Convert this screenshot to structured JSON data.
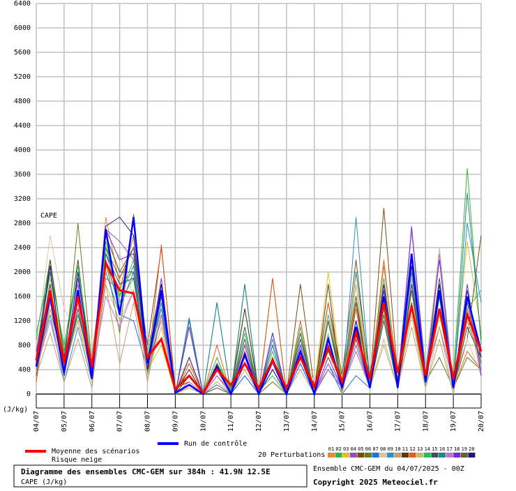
{
  "chart_data": {
    "type": "line",
    "annotation": "CAPE",
    "unit_label": "(J/kg)",
    "ylim": [
      0,
      6400
    ],
    "yticks": [
      0,
      400,
      800,
      1200,
      1600,
      2000,
      2400,
      2800,
      3200,
      3600,
      4000,
      4400,
      4800,
      5200,
      5600,
      6000,
      6400
    ],
    "xlim": [
      0,
      16
    ],
    "xticks": [
      {
        "value": 0,
        "label": "04/07"
      },
      {
        "value": 1,
        "label": "05/07"
      },
      {
        "value": 2,
        "label": "06/07"
      },
      {
        "value": 3,
        "label": "07/07"
      },
      {
        "value": 4,
        "label": "08/07"
      },
      {
        "value": 5,
        "label": "09/07"
      },
      {
        "value": 6,
        "label": "10/07"
      },
      {
        "value": 7,
        "label": "11/07"
      },
      {
        "value": 8,
        "label": "12/07"
      },
      {
        "value": 9,
        "label": "13/07"
      },
      {
        "value": 10,
        "label": "14/07"
      },
      {
        "value": 11,
        "label": "15/07"
      },
      {
        "value": 12,
        "label": "16/07"
      },
      {
        "value": 13,
        "label": "17/07"
      },
      {
        "value": 14,
        "label": "18/07"
      },
      {
        "value": 15,
        "label": "19/07"
      },
      {
        "value": 16,
        "label": "20/07"
      }
    ],
    "grid": true,
    "x": [
      0,
      0.5,
      1,
      1.5,
      2,
      2.5,
      3,
      3.5,
      4,
      4.5,
      5,
      5.5,
      6,
      6.5,
      7,
      7.5,
      8,
      8.5,
      9,
      9.5,
      10,
      10.5,
      11,
      11.5,
      12,
      12.5,
      13,
      13.5,
      14,
      14.5,
      15,
      15.5,
      16
    ],
    "series": [
      {
        "name": "01",
        "color": "#e8883a",
        "values": [
          300,
          1500,
          400,
          1200,
          300,
          2900,
          1800,
          2000,
          500,
          1200,
          50,
          600,
          0,
          300,
          50,
          800,
          0,
          200,
          0,
          1000,
          50,
          400,
          100,
          1800,
          200,
          2100,
          300,
          2300,
          200,
          2400,
          100,
          1200,
          600
        ]
      },
      {
        "name": "02",
        "color": "#40b040",
        "values": [
          900,
          2200,
          700,
          2000,
          400,
          2500,
          1500,
          1900,
          700,
          1800,
          100,
          200,
          0,
          500,
          100,
          1400,
          50,
          300,
          0,
          900,
          100,
          700,
          150,
          1200,
          300,
          1900,
          200,
          2700,
          400,
          1800,
          300,
          3700,
          800
        ]
      },
      {
        "name": "03",
        "color": "#e0c020",
        "values": [
          200,
          1900,
          600,
          1500,
          300,
          2100,
          1600,
          2800,
          400,
          800,
          20,
          100,
          0,
          600,
          50,
          600,
          0,
          400,
          0,
          700,
          100,
          2000,
          200,
          1600,
          300,
          1800,
          100,
          2100,
          200,
          1300,
          200,
          2500,
          1000
        ]
      },
      {
        "name": "04",
        "color": "#9050c0",
        "values": [
          700,
          2100,
          300,
          1800,
          200,
          2700,
          2500,
          2200,
          300,
          1800,
          0,
          1100,
          0,
          300,
          0,
          300,
          0,
          600,
          0,
          500,
          0,
          400,
          100,
          800,
          100,
          1700,
          200,
          2700,
          300,
          1100,
          200,
          1400,
          500
        ]
      },
      {
        "name": "05",
        "color": "#7a4a10",
        "values": [
          400,
          1400,
          500,
          1300,
          600,
          2400,
          1900,
          2400,
          800,
          2400,
          100,
          200,
          0,
          100,
          0,
          700,
          0,
          1900,
          0,
          1800,
          100,
          1500,
          300,
          2200,
          200,
          3050,
          300,
          1800,
          400,
          1600,
          100,
          900,
          2600
        ]
      },
      {
        "name": "06",
        "color": "#6a7a20",
        "values": [
          500,
          1600,
          400,
          2800,
          500,
          2200,
          1000,
          2950,
          300,
          1300,
          50,
          400,
          0,
          300,
          0,
          500,
          0,
          200,
          0,
          600,
          0,
          1200,
          100,
          700,
          100,
          1400,
          100,
          1300,
          200,
          600,
          100,
          600,
          400
        ]
      },
      {
        "name": "07",
        "color": "#2070e0",
        "values": [
          600,
          1800,
          300,
          1600,
          400,
          2000,
          1300,
          1200,
          400,
          1500,
          0,
          1250,
          0,
          150,
          0,
          300,
          0,
          1000,
          0,
          500,
          0,
          500,
          0,
          300,
          100,
          1600,
          100,
          1900,
          100,
          1700,
          100,
          1600,
          600
        ]
      },
      {
        "name": "08",
        "color": "#d8c8a0",
        "values": [
          800,
          2600,
          1400,
          1000,
          600,
          2000,
          2300,
          1600,
          900,
          1200,
          300,
          500,
          100,
          400,
          200,
          500,
          200,
          500,
          100,
          700,
          200,
          600,
          300,
          1100,
          400,
          1500,
          300,
          1900,
          400,
          2400,
          200,
          900,
          300
        ]
      },
      {
        "name": "09",
        "color": "#3090c0",
        "values": [
          400,
          1300,
          200,
          1100,
          200,
          2300,
          1600,
          2100,
          400,
          1700,
          0,
          300,
          0,
          1500,
          0,
          1800,
          0,
          900,
          0,
          1000,
          0,
          500,
          0,
          2900,
          200,
          1700,
          200,
          2000,
          100,
          2300,
          100,
          2800,
          1500
        ]
      },
      {
        "name": "10",
        "color": "#c0a070",
        "values": [
          300,
          1000,
          200,
          900,
          100,
          1800,
          500,
          1500,
          200,
          1300,
          0,
          100,
          0,
          200,
          0,
          400,
          0,
          600,
          0,
          400,
          0,
          1000,
          0,
          1000,
          100,
          800,
          100,
          1100,
          100,
          900,
          0,
          1400,
          300
        ]
      },
      {
        "name": "11",
        "color": "#5a3a1a",
        "values": [
          600,
          2200,
          600,
          2200,
          300,
          2600,
          2000,
          2000,
          500,
          1800,
          20,
          400,
          0,
          500,
          0,
          1400,
          0,
          400,
          0,
          800,
          0,
          1800,
          50,
          1500,
          100,
          1600,
          100,
          1500,
          200,
          1700,
          100,
          1300,
          700
        ]
      },
      {
        "name": "12",
        "color": "#e06020",
        "values": [
          200,
          1700,
          500,
          1500,
          200,
          1900,
          1700,
          2600,
          400,
          2450,
          0,
          500,
          0,
          800,
          0,
          700,
          0,
          1900,
          0,
          1200,
          0,
          1500,
          100,
          1400,
          100,
          2200,
          200,
          1700,
          200,
          1600,
          100,
          700,
          400
        ]
      },
      {
        "name": "13",
        "color": "#c8b870",
        "values": [
          300,
          1400,
          300,
          1700,
          200,
          1800,
          1200,
          1700,
          300,
          1100,
          0,
          200,
          0,
          200,
          0,
          900,
          0,
          400,
          0,
          600,
          0,
          1000,
          0,
          1800,
          100,
          900,
          100,
          1300,
          100,
          1100,
          0,
          1200,
          500
        ]
      },
      {
        "name": "14",
        "color": "#20c060",
        "values": [
          1000,
          2000,
          800,
          2100,
          500,
          2400,
          1600,
          2200,
          600,
          1700,
          100,
          300,
          0,
          600,
          0,
          1000,
          0,
          700,
          0,
          1100,
          0,
          1300,
          200,
          1000,
          200,
          1300,
          100,
          2300,
          300,
          1600,
          200,
          1400,
          1700
        ]
      },
      {
        "name": "15",
        "color": "#405060",
        "values": [
          500,
          1800,
          300,
          1400,
          300,
          2300,
          1800,
          1900,
          400,
          1300,
          0,
          300,
          0,
          400,
          0,
          1100,
          0,
          800,
          0,
          900,
          0,
          1200,
          100,
          900,
          100,
          1200,
          100,
          1800,
          200,
          1900,
          100,
          1100,
          600
        ]
      },
      {
        "name": "16",
        "color": "#208880",
        "values": [
          600,
          2000,
          400,
          1300,
          400,
          2200,
          1400,
          2000,
          500,
          1400,
          0,
          1200,
          0,
          1500,
          0,
          1800,
          0,
          1000,
          0,
          700,
          0,
          900,
          100,
          2000,
          300,
          1700,
          200,
          2200,
          200,
          1600,
          100,
          3300,
          900
        ]
      },
      {
        "name": "17",
        "color": "#c070e0",
        "values": [
          400,
          1200,
          300,
          1500,
          300,
          1600,
          1100,
          1700,
          400,
          1300,
          0,
          200,
          0,
          300,
          0,
          600,
          0,
          500,
          0,
          700,
          0,
          500,
          100,
          700,
          100,
          1500,
          100,
          2700,
          200,
          2300,
          100,
          1600,
          400
        ]
      },
      {
        "name": "18",
        "color": "#7030d0",
        "values": [
          700,
          1600,
          500,
          1900,
          400,
          2700,
          2200,
          2300,
          500,
          1900,
          0,
          1100,
          0,
          400,
          0,
          800,
          0,
          1000,
          0,
          800,
          0,
          600,
          100,
          1200,
          100,
          1700,
          100,
          2750,
          300,
          2200,
          100,
          1800,
          300
        ]
      },
      {
        "name": "19",
        "color": "#606030",
        "values": [
          300,
          1700,
          400,
          1400,
          300,
          2600,
          2000,
          2400,
          400,
          1600,
          0,
          300,
          0,
          500,
          0,
          900,
          0,
          600,
          0,
          1000,
          0,
          1200,
          200,
          1600,
          100,
          1300,
          200,
          1700,
          300,
          1800,
          100,
          1500,
          500
        ]
      },
      {
        "name": "20",
        "color": "#201880",
        "values": [
          500,
          2100,
          300,
          2000,
          300,
          2750,
          2900,
          2600,
          400,
          1800,
          0,
          600,
          0,
          450,
          0,
          500,
          0,
          400,
          0,
          600,
          0,
          800,
          100,
          1200,
          100,
          1800,
          200,
          2100,
          200,
          1800,
          100,
          1700,
          600
        ]
      },
      {
        "name": "Run de contrôle",
        "color": "#0000ff",
        "values": [
          450,
          1600,
          350,
          1700,
          250,
          2700,
          1300,
          2900,
          500,
          1700,
          20,
          150,
          0,
          450,
          0,
          650,
          0,
          550,
          0,
          700,
          0,
          900,
          100,
          1100,
          100,
          1600,
          100,
          2300,
          200,
          1700,
          100,
          1600,
          700
        ]
      },
      {
        "name": "Moyenne des scénarios",
        "color": "#ff0000",
        "values": [
          550,
          1700,
          500,
          1600,
          450,
          2150,
          1700,
          1650,
          600,
          900,
          80,
          300,
          20,
          400,
          150,
          500,
          100,
          550,
          100,
          600,
          120,
          750,
          200,
          1000,
          250,
          1500,
          350,
          1450,
          300,
          1400,
          250,
          1300,
          700
        ]
      }
    ],
    "snow_risk_label": "Risque neige",
    "perturbations_label": "20 Perturbations",
    "footer": {
      "title": "Diagramme des ensembles CMC-GEM sur 384h : 41.9N 12.5E",
      "subtitle": "CAPE (J/kg)",
      "run": "Ensemble CMC-GEM du 04/07/2025 - 00Z",
      "copyright": "Copyright 2025 Meteociel.fr"
    }
  }
}
